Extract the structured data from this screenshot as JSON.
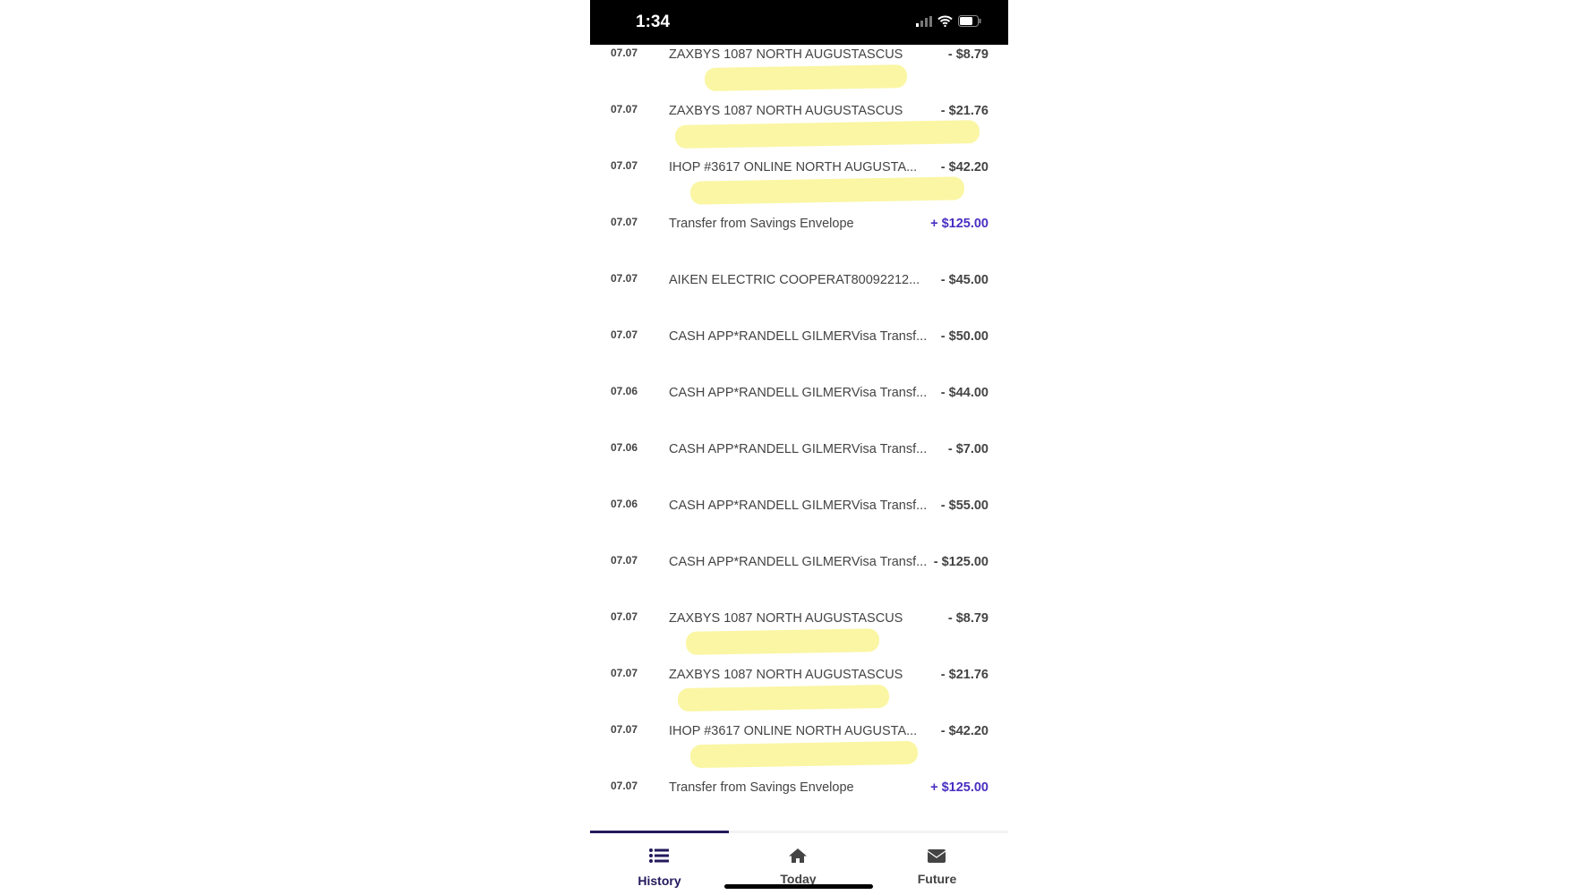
{
  "status_bar": {
    "time": "1:34"
  },
  "transactions": [
    {
      "date": "07.07",
      "description": "ZAXBYS 1087 NORTH AUGUSTASCUS",
      "amount": "- $8.79",
      "highlight": true
    },
    {
      "date": "07.07",
      "description": "ZAXBYS 1087 NORTH AUGUSTASCUS",
      "amount": "- $21.76",
      "highlight": true
    },
    {
      "date": "07.07",
      "description": "IHOP #3617 ONLINE NORTH AUGUSTA...",
      "amount": "- $42.20",
      "highlight": true
    },
    {
      "date": "07.07",
      "description": "Transfer from Savings Envelope",
      "amount": "+ $125.00",
      "positive": true
    },
    {
      "date": "07.07",
      "description": "AIKEN ELECTRIC COOPERAT80092212...",
      "amount": "- $45.00"
    },
    {
      "date": "07.07",
      "description": "CASH APP*RANDELL GILMERVisa Transf...",
      "amount": "- $50.00"
    },
    {
      "date": "07.06",
      "description": "CASH APP*RANDELL GILMERVisa Transf...",
      "amount": "- $44.00"
    },
    {
      "date": "07.06",
      "description": "CASH APP*RANDELL GILMERVisa Transf...",
      "amount": "- $7.00"
    },
    {
      "date": "07.06",
      "description": "CASH APP*RANDELL GILMERVisa Transf...",
      "amount": "- $55.00"
    },
    {
      "date": "07.07",
      "description": "CASH APP*RANDELL GILMERVisa Transf...",
      "amount": "- $125.00"
    },
    {
      "date": "07.07",
      "description": "ZAXBYS 1087 NORTH AUGUSTASCUS",
      "amount": "- $8.79",
      "highlight": true
    },
    {
      "date": "07.07",
      "description": "ZAXBYS 1087 NORTH AUGUSTASCUS",
      "amount": "- $21.76",
      "highlight": true
    },
    {
      "date": "07.07",
      "description": "IHOP #3617 ONLINE NORTH AUGUSTA...",
      "amount": "- $42.20",
      "highlight": true
    },
    {
      "date": "07.07",
      "description": "Transfer from Savings Envelope",
      "amount": "+ $125.00",
      "positive": true
    }
  ],
  "tabs": [
    {
      "label": "History",
      "icon": "list-icon",
      "active": true
    },
    {
      "label": "Today",
      "icon": "home-icon"
    },
    {
      "label": "Future",
      "icon": "envelope-icon"
    }
  ],
  "colors": {
    "accent": "#231a5c",
    "positive": "#4a2fc2",
    "highlight": "#f9f59a"
  }
}
